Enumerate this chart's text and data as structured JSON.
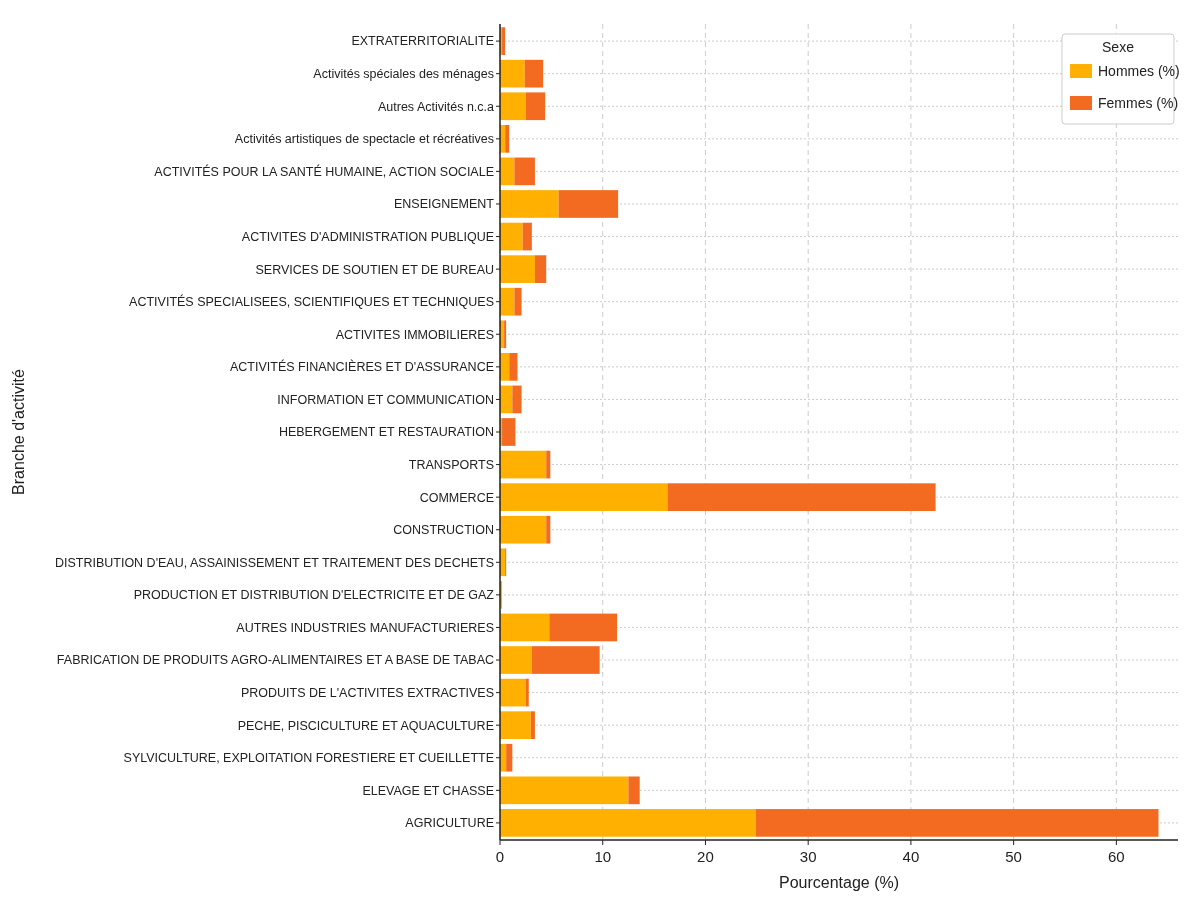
{
  "chart_data": {
    "type": "bar",
    "orientation": "horizontal",
    "stacked": true,
    "xlabel": "Pourcentage (%)",
    "ylabel": "Branche d'activité",
    "legend_title": "Sexe",
    "legend": "top right",
    "grid": true,
    "categories": [
      "EXTRATERRITORIALITE",
      "Activités spéciales des ménages",
      "Autres Activités n.c.a",
      "Activités artistiques de spectacle et récréatives",
      "ACTIVITÉS POUR LA SANTÉ HUMAINE, ACTION SOCIALE",
      "ENSEIGNEMENT",
      "ACTIVITES D'ADMINISTRATION PUBLIQUE",
      "SERVICES DE SOUTIEN ET DE BUREAU",
      "ACTIVITÉS SPECIALISEES, SCIENTIFIQUES ET TECHNIQUES",
      "ACTIVITES IMMOBILIERES",
      "ACTIVITÉS FINANCIÈRES ET D'ASSURANCE",
      "INFORMATION ET COMMUNICATION",
      "HEBERGEMENT ET RESTAURATION",
      "TRANSPORTS",
      "COMMERCE",
      "CONSTRUCTION",
      "DISTRIBUTION D'EAU, ASSAINISSEMENT ET TRAITEMENT DES DECHETS",
      "PRODUCTION ET DISTRIBUTION D'ELECTRICITE ET DE GAZ",
      "AUTRES INDUSTRIES MANUFACTURIERES",
      "FABRICATION DE PRODUITS AGRO-ALIMENTAIRES ET A BASE DE TABAC",
      "PRODUITS DE L'ACTIVITES EXTRACTIVES",
      "PECHE, PISCICULTURE ET AQUACULTURE",
      "SYLVICULTURE, EXPLOITATION FORESTIERE ET CUEILLETTE",
      "ELEVAGE ET CHASSE",
      "AGRICULTURE"
    ],
    "series": [
      {
        "name": "Hommes (%)",
        "color": "#ffb000",
        "values": [
          0.2,
          2.4,
          2.5,
          0.5,
          1.4,
          5.7,
          2.2,
          3.4,
          1.4,
          0.4,
          0.9,
          1.2,
          0.2,
          4.5,
          16.3,
          4.5,
          0.5,
          0.2,
          4.8,
          3.1,
          2.5,
          3.0,
          0.6,
          12.5,
          24.9
        ]
      },
      {
        "name": "Femmes (%)",
        "color": "#f26b21",
        "values": [
          0.3,
          1.8,
          1.9,
          0.4,
          2.0,
          5.8,
          0.9,
          1.1,
          0.7,
          0.2,
          0.8,
          0.9,
          1.3,
          0.4,
          26.1,
          0.4,
          0.1,
          0,
          6.6,
          6.6,
          0.3,
          0.4,
          0.6,
          1.1,
          39.2
        ]
      }
    ],
    "xlim": [
      0,
      66
    ],
    "xticks": [
      0,
      10,
      20,
      30,
      40,
      50,
      60
    ]
  }
}
